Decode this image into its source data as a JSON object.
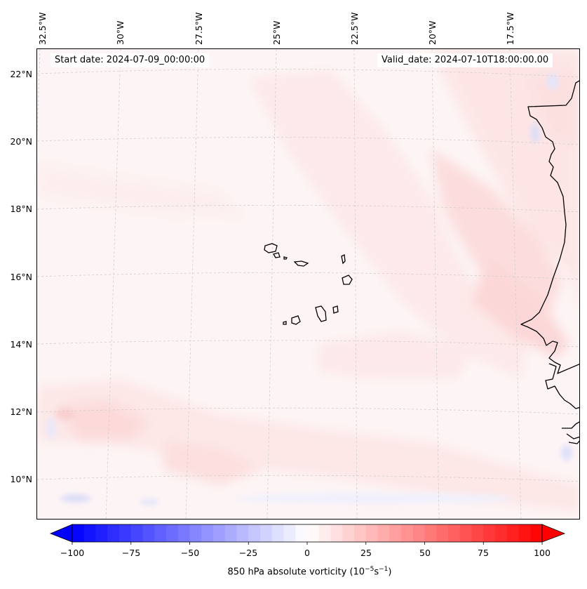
{
  "map": {
    "start_date": "Start date: 2024-07-09_00:00:00",
    "valid_date": "Valid_date: 2024-07-10T18:00:00.00",
    "longitude_labels": [
      "32.5°W",
      "30°W",
      "27.5°W",
      "25°W",
      "22.5°W",
      "20°W",
      "17.5°W"
    ],
    "latitude_labels": [
      "22°N",
      "20°N",
      "18°N",
      "16°N",
      "14°N",
      "12°N",
      "10°N"
    ],
    "variable": "850 hPa absolute vorticity",
    "region_features": [
      "Cape Verde Islands",
      "West African coastline"
    ],
    "gridlines": "dashed",
    "colors": {
      "coast": "#000000",
      "grid": "#c8c8c8",
      "background": "#fdf6f6"
    }
  },
  "colorbar": {
    "colormap": "bwr",
    "min": -100,
    "max": 100,
    "tick_labels": [
      "−100",
      "−75",
      "−50",
      "−25",
      "0",
      "25",
      "50",
      "75",
      "100"
    ],
    "label_prefix": "850 hPa absolute vorticity (10",
    "label_exp1": "−5",
    "label_mid": "s",
    "label_exp2": "−1",
    "label_suffix": ")",
    "extend": "both"
  }
}
